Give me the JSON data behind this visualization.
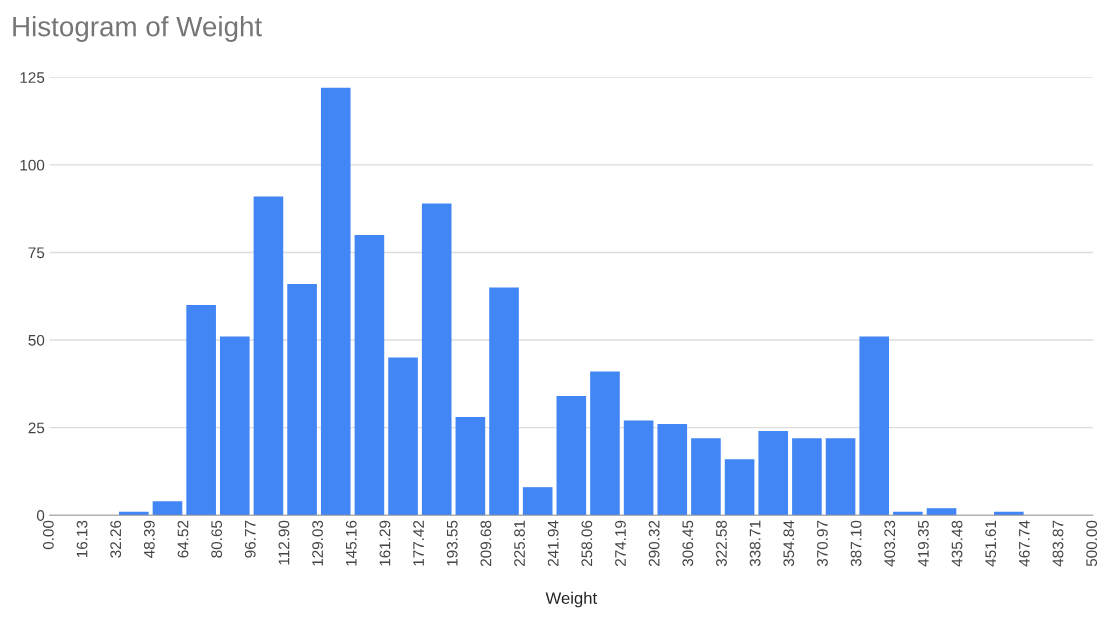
{
  "chart_data": {
    "type": "histogram",
    "title": "Histogram of Weight",
    "xlabel": "Weight",
    "bins": [
      0,
      16.13,
      32.26,
      48.39,
      64.52,
      80.65,
      96.77,
      112.9,
      129.03,
      145.16,
      161.29,
      177.42,
      193.55,
      209.68,
      225.81,
      241.94,
      258.06,
      274.19,
      290.32,
      306.45,
      322.58,
      338.71,
      354.84,
      370.97,
      387.1,
      403.23,
      419.35,
      435.48,
      451.61,
      467.74,
      483.87,
      500
    ],
    "values": [
      0,
      0,
      1,
      4,
      60,
      51,
      91,
      66,
      122,
      80,
      45,
      89,
      28,
      65,
      8,
      34,
      41,
      27,
      26,
      22,
      16,
      24,
      22,
      22,
      51,
      1,
      2,
      0,
      1,
      0,
      0
    ],
    "color": "#4285f4",
    "xlim": [
      0,
      500
    ],
    "ylim": [
      0,
      125
    ],
    "xticks": [
      {
        "value": 0,
        "label": "0.00"
      },
      {
        "value": 16.13,
        "label": "16.13"
      },
      {
        "value": 32.26,
        "label": "32.26"
      },
      {
        "value": 48.39,
        "label": "48.39"
      },
      {
        "value": 64.52,
        "label": "64.52"
      },
      {
        "value": 80.65,
        "label": "80.65"
      },
      {
        "value": 96.77,
        "label": "96.77"
      },
      {
        "value": 112.9,
        "label": "112.90"
      },
      {
        "value": 129.03,
        "label": "129.03"
      },
      {
        "value": 145.16,
        "label": "145.16"
      },
      {
        "value": 161.29,
        "label": "161.29"
      },
      {
        "value": 177.42,
        "label": "177.42"
      },
      {
        "value": 193.55,
        "label": "193.55"
      },
      {
        "value": 209.68,
        "label": "209.68"
      },
      {
        "value": 225.81,
        "label": "225.81"
      },
      {
        "value": 241.94,
        "label": "241.94"
      },
      {
        "value": 258.06,
        "label": "258.06"
      },
      {
        "value": 274.19,
        "label": "274.19"
      },
      {
        "value": 290.32,
        "label": "290.32"
      },
      {
        "value": 306.45,
        "label": "306.45"
      },
      {
        "value": 322.58,
        "label": "322.58"
      },
      {
        "value": 338.71,
        "label": "338.71"
      },
      {
        "value": 354.84,
        "label": "354.84"
      },
      {
        "value": 370.97,
        "label": "370.97"
      },
      {
        "value": 387.1,
        "label": "387.10"
      },
      {
        "value": 403.23,
        "label": "403.23"
      },
      {
        "value": 419.35,
        "label": "419.35"
      },
      {
        "value": 435.48,
        "label": "435.48"
      },
      {
        "value": 451.61,
        "label": "451.61"
      },
      {
        "value": 467.74,
        "label": "467.74"
      },
      {
        "value": 483.87,
        "label": "483.87"
      },
      {
        "value": 500,
        "label": "500.00"
      }
    ],
    "yticks": [
      0,
      25,
      50,
      75,
      100,
      125
    ],
    "grid": "y",
    "legend": false
  }
}
